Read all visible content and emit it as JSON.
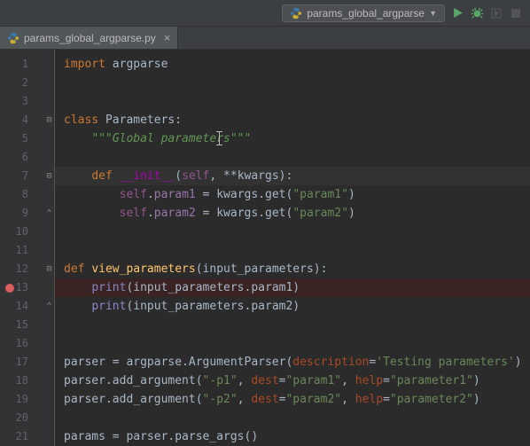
{
  "toolbar": {
    "run_config": "params_global_argparse"
  },
  "tab": {
    "filename": "params_global_argparse.py"
  },
  "colors": {
    "run_icon": "#59a869",
    "debug_icon": "#59a869",
    "disabled_icon": "#6e6e6e",
    "breakpoint": "#db5c5c"
  },
  "code": {
    "lines": [
      {
        "n": 1,
        "tokens": [
          [
            "kw",
            "import"
          ],
          [
            "",
            " argparse"
          ]
        ]
      },
      {
        "n": 2,
        "tokens": []
      },
      {
        "n": 3,
        "tokens": []
      },
      {
        "n": 4,
        "fold": "-",
        "tokens": [
          [
            "kw",
            "class"
          ],
          [
            "",
            " "
          ],
          [
            "cls",
            "Parameters"
          ],
          [
            "",
            ":"
          ]
        ]
      },
      {
        "n": 5,
        "tokens": [
          [
            "",
            "    "
          ],
          [
            "doc",
            "\"\"\"Global parameters\"\"\""
          ]
        ]
      },
      {
        "n": 6,
        "tokens": []
      },
      {
        "n": 7,
        "fold": "-",
        "hl": true,
        "tokens": [
          [
            "",
            "    "
          ],
          [
            "kw",
            "def"
          ],
          [
            "",
            " "
          ],
          [
            "dunder",
            "__init__"
          ],
          [
            "",
            "("
          ],
          [
            "self",
            "self"
          ],
          [
            "",
            ", **kwargs):"
          ]
        ]
      },
      {
        "n": 8,
        "tokens": [
          [
            "",
            "        "
          ],
          [
            "self",
            "self"
          ],
          [
            "",
            "."
          ],
          [
            "attr",
            "param1"
          ],
          [
            "",
            " = kwargs.get("
          ],
          [
            "str",
            "\"param1\""
          ],
          [
            "",
            ")"
          ]
        ]
      },
      {
        "n": 9,
        "fold": "^",
        "tokens": [
          [
            "",
            "        "
          ],
          [
            "self",
            "self"
          ],
          [
            "",
            "."
          ],
          [
            "attr",
            "param2"
          ],
          [
            "",
            " = kwargs.get("
          ],
          [
            "str",
            "\"param2\""
          ],
          [
            "",
            ")"
          ]
        ]
      },
      {
        "n": 10,
        "tokens": []
      },
      {
        "n": 11,
        "tokens": []
      },
      {
        "n": 12,
        "fold": "-",
        "tokens": [
          [
            "kw",
            "def"
          ],
          [
            "",
            " "
          ],
          [
            "fn",
            "view_parameters"
          ],
          [
            "",
            "("
          ],
          [
            "param",
            "input_parameters"
          ],
          [
            "",
            ")"
          ],
          [
            "",
            ":"
          ]
        ]
      },
      {
        "n": 13,
        "bp": true,
        "tokens": [
          [
            "",
            "    "
          ],
          [
            "builtin",
            "print"
          ],
          [
            "",
            "(input_parameters.param1)"
          ]
        ]
      },
      {
        "n": 14,
        "fold": "^",
        "tokens": [
          [
            "",
            "    "
          ],
          [
            "builtin",
            "print"
          ],
          [
            "",
            "(input_parameters.param2)"
          ]
        ]
      },
      {
        "n": 15,
        "tokens": []
      },
      {
        "n": 16,
        "tokens": []
      },
      {
        "n": 17,
        "tokens": [
          [
            "",
            "parser = argparse.ArgumentParser("
          ],
          [
            "namedparam",
            "description"
          ],
          [
            "",
            "="
          ],
          [
            "str",
            "'Testing parameters'"
          ],
          [
            "",
            ")"
          ]
        ]
      },
      {
        "n": 18,
        "tokens": [
          [
            "",
            "parser.add_argument("
          ],
          [
            "str",
            "\"-p1\""
          ],
          [
            "",
            ", "
          ],
          [
            "namedparam",
            "dest"
          ],
          [
            "",
            "="
          ],
          [
            "str",
            "\"param1\""
          ],
          [
            "",
            ", "
          ],
          [
            "namedparam",
            "help"
          ],
          [
            "",
            "="
          ],
          [
            "str",
            "\"parameter1\""
          ],
          [
            "",
            ")"
          ]
        ]
      },
      {
        "n": 19,
        "tokens": [
          [
            "",
            "parser.add_argument("
          ],
          [
            "str",
            "\"-p2\""
          ],
          [
            "",
            ", "
          ],
          [
            "namedparam",
            "dest"
          ],
          [
            "",
            "="
          ],
          [
            "str",
            "\"param2\""
          ],
          [
            "",
            ", "
          ],
          [
            "namedparam",
            "help"
          ],
          [
            "",
            "="
          ],
          [
            "str",
            "\"parameter2\""
          ],
          [
            "",
            ")"
          ]
        ]
      },
      {
        "n": 20,
        "tokens": []
      },
      {
        "n": 21,
        "tokens": [
          [
            "",
            "params = parser.parse_args()"
          ]
        ]
      }
    ]
  }
}
